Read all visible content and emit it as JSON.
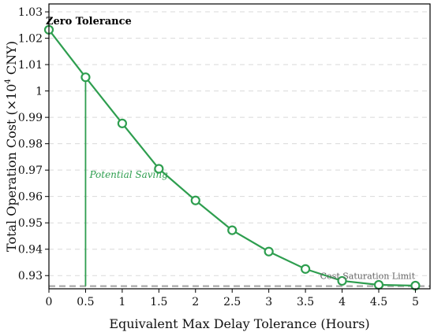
{
  "chart_data": {
    "type": "line",
    "xlabel": "Equivalent Max Delay Tolerance (Hours)",
    "ylabel_main": "Total Operation Cost (×10",
    "ylabel_sup": "4",
    "ylabel_tail": " CNY)",
    "xlim": [
      0,
      5.2
    ],
    "ylim": [
      0.925,
      1.033
    ],
    "x_ticks": [
      "0",
      "0.5",
      "1",
      "1.5",
      "2",
      "2.5",
      "3",
      "3.5",
      "4",
      "4.5",
      "5"
    ],
    "x_tick_values": [
      0,
      0.5,
      1,
      1.5,
      2,
      2.5,
      3,
      3.5,
      4,
      4.5,
      5
    ],
    "y_ticks": [
      "0.93",
      "0.94",
      "0.95",
      "0.96",
      "0.97",
      "0.98",
      "0.99",
      "1",
      "1.01",
      "1.02",
      "1.03"
    ],
    "y_tick_values": [
      0.93,
      0.94,
      0.95,
      0.96,
      0.97,
      0.98,
      0.99,
      1.0,
      1.01,
      1.02,
      1.03
    ],
    "grid": "horizontal-dashed",
    "series": [
      {
        "color": "#2e9e4f",
        "x": [
          0,
          0.5,
          1,
          1.5,
          2,
          2.5,
          3,
          3.5,
          4,
          4.5,
          5
        ],
        "y": [
          1.0232,
          1.0052,
          0.9877,
          0.9705,
          0.9585,
          0.9472,
          0.9391,
          0.9325,
          0.928,
          0.9265,
          0.9262
        ]
      }
    ],
    "saturation_limit": {
      "y": 0.926,
      "color": "#aaaaaa"
    },
    "saving_line": {
      "x": 0.5,
      "y_from": 0.926,
      "y_to": 1.0052,
      "color": "#2e9e4f"
    },
    "annotations": {
      "zero_tolerance": "Zero Tolerance",
      "potential_saving": "Potential Saving",
      "cost_saturation": "Cost Saturation Limit"
    }
  }
}
